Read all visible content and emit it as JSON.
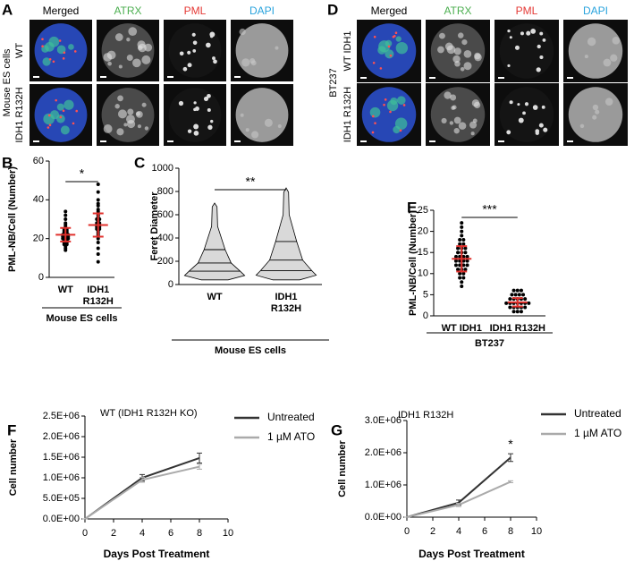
{
  "figure": {
    "A": {
      "letter": "A",
      "columns": [
        "Merged",
        "ATRX",
        "PML",
        "DAPI"
      ],
      "rows": [
        "WT",
        "IDH1 R132H"
      ],
      "group": "Mouse ES cells"
    },
    "D": {
      "letter": "D",
      "columns": [
        "Merged",
        "ATRX",
        "PML",
        "DAPI"
      ],
      "rows": [
        "WT IDH1",
        "IDH1 R132H"
      ],
      "group": "BT237"
    }
  },
  "chart_data": [
    {
      "type": "dotplot",
      "panel": "B",
      "y_label": "PML-NB/Cell (Number)",
      "categories": [
        "WT",
        "IDH1 R132H"
      ],
      "group_label": "Mouse ES cells",
      "significance": "*",
      "points": [
        [
          14,
          15,
          16,
          17,
          17,
          18,
          18,
          19,
          19,
          20,
          20,
          20,
          21,
          21,
          21,
          22,
          22,
          22,
          23,
          23,
          24,
          24,
          25,
          25,
          26,
          27,
          28,
          30,
          32,
          34
        ],
        [
          8,
          12,
          15,
          18,
          20,
          21,
          22,
          23,
          24,
          25,
          25,
          26,
          26,
          27,
          27,
          28,
          28,
          29,
          30,
          30,
          31,
          32,
          33,
          34,
          35,
          37,
          38,
          40,
          44,
          48
        ]
      ],
      "mean": [
        22,
        27
      ],
      "sd": [
        3.5,
        6
      ],
      "color": "#000000",
      "summary_color": "#e0302c",
      "ylim": [
        0,
        60
      ],
      "yticks": [
        0,
        20,
        40,
        60
      ]
    },
    {
      "type": "violin",
      "panel": "C",
      "y_label": "Feret Diameter",
      "categories": [
        "WT",
        "IDH1 R132H"
      ],
      "group_label": "Mouse ES cells",
      "significance": "**",
      "stats": [
        {
          "min": 40,
          "q1": 115,
          "median": 185,
          "q3": 300,
          "max": 700
        },
        {
          "min": 40,
          "q1": 120,
          "median": 210,
          "q3": 370,
          "max": 830
        }
      ],
      "color": "#d9d9d9",
      "ylim": [
        0,
        1000
      ],
      "yticks": [
        0,
        200,
        400,
        600,
        800,
        1000
      ]
    },
    {
      "type": "dotplot",
      "panel": "E",
      "y_label": "PML-NB/Cell (Number)",
      "categories": [
        "WT IDH1",
        "IDH1 R132H"
      ],
      "group_label": "BT237",
      "significance": "***",
      "points": [
        [
          7,
          8,
          9,
          9,
          10,
          10,
          11,
          11,
          11,
          12,
          12,
          12,
          12,
          13,
          13,
          13,
          13,
          14,
          14,
          14,
          14,
          15,
          15,
          15,
          16,
          16,
          16,
          17,
          17,
          18,
          18,
          19,
          20,
          21,
          22
        ],
        [
          1,
          1,
          1,
          2,
          2,
          2,
          2,
          2,
          3,
          3,
          3,
          3,
          3,
          3,
          3,
          4,
          4,
          4,
          4,
          4,
          5,
          5,
          5,
          5,
          6,
          6,
          6
        ]
      ],
      "mean": [
        13.5,
        3.2
      ],
      "sd": [
        3,
        1
      ],
      "color": "#000000",
      "summary_color": "#e0302c",
      "ylim": [
        0,
        25
      ],
      "yticks": [
        0,
        5,
        10,
        15,
        20,
        25
      ]
    },
    {
      "type": "line",
      "panel": "F",
      "title": "WT (IDH1 R132H KO)",
      "x_label": "Days Post Treatment",
      "y_label": "Cell number",
      "x": [
        0,
        4,
        8
      ],
      "series": [
        {
          "name": "Untreated",
          "color": "#333333",
          "values": [
            0,
            1000000,
            1480000
          ],
          "errors": [
            0,
            80000,
            120000
          ]
        },
        {
          "name": "1 µM ATO",
          "color": "#aaaaaa",
          "values": [
            0,
            950000,
            1270000
          ],
          "errors": [
            0,
            60000,
            60000
          ]
        }
      ],
      "xlim": [
        0,
        10
      ],
      "xticks": [
        0,
        2,
        4,
        6,
        8,
        10
      ],
      "ylim": [
        0,
        2500000
      ],
      "yticks": [
        {
          "value": 0,
          "label": "0.0E+00"
        },
        {
          "value": 500000,
          "label": "5.0E+05"
        },
        {
          "value": 1000000,
          "label": "1.0E+06"
        },
        {
          "value": 1500000,
          "label": "1.5E+06"
        },
        {
          "value": 2000000,
          "label": "2.0E+06"
        },
        {
          "value": 2500000,
          "label": "2.5E+06"
        }
      ]
    },
    {
      "type": "line",
      "panel": "G",
      "title": "IDH1 R132H",
      "x_label": "Days Post Treatment",
      "y_label": "Cell number",
      "annotation": "*",
      "x": [
        0,
        4,
        8
      ],
      "series": [
        {
          "name": "Untreated",
          "color": "#333333",
          "values": [
            0,
            450000,
            1850000
          ],
          "errors": [
            0,
            80000,
            120000
          ]
        },
        {
          "name": "1 µM ATO",
          "color": "#aaaaaa",
          "values": [
            0,
            380000,
            1100000
          ],
          "errors": [
            0,
            50000,
            30000
          ]
        }
      ],
      "xlim": [
        0,
        10
      ],
      "xticks": [
        0,
        2,
        4,
        6,
        8,
        10
      ],
      "ylim": [
        0,
        3000000
      ],
      "yticks": [
        {
          "value": 0,
          "label": "0.0E+00"
        },
        {
          "value": 1000000,
          "label": "1.0E+06"
        },
        {
          "value": 2000000,
          "label": "2.0E+06"
        },
        {
          "value": 3000000,
          "label": "3.0E+06"
        }
      ]
    }
  ]
}
